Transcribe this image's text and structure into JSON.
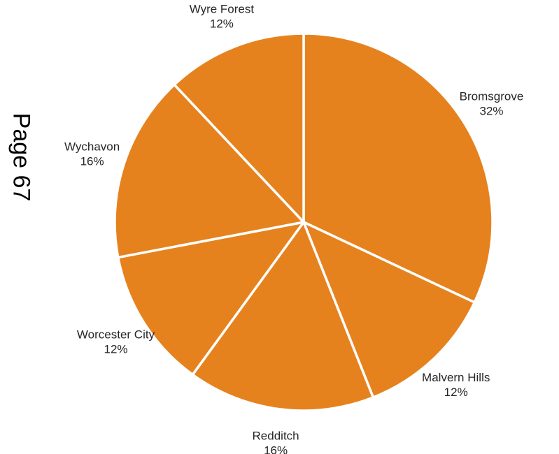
{
  "page_label": "Page 67",
  "colors": {
    "slice_fill": "#E6821E",
    "slice_border": "#FFFFFF",
    "label_text": "#262626"
  },
  "chart_data": {
    "type": "pie",
    "slices": [
      {
        "name": "Bromsgrove",
        "label": "32%",
        "value": 32
      },
      {
        "name": "Malvern Hills",
        "label": "12%",
        "value": 12
      },
      {
        "name": "Redditch",
        "label": "16%",
        "value": 16
      },
      {
        "name": "Worcester City",
        "label": "12%",
        "value": 12
      },
      {
        "name": "Wychavon",
        "label": "16%",
        "value": 16
      },
      {
        "name": "Wyre Forest",
        "label": "12%",
        "value": 12
      }
    ],
    "start": "12 o'clock",
    "direction": "clockwise",
    "legend": "none"
  }
}
